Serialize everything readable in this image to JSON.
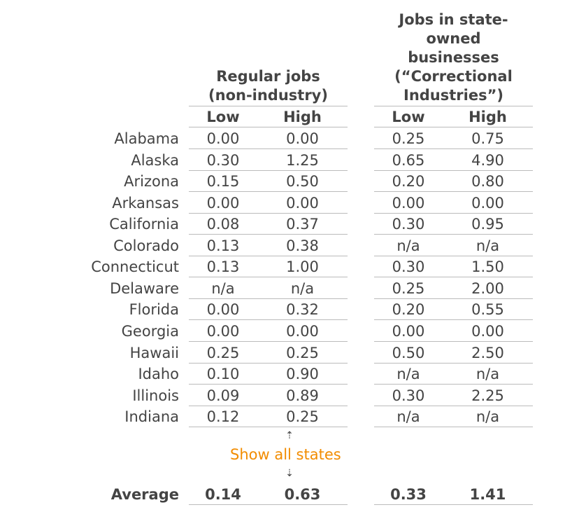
{
  "headers": {
    "regular": [
      "Regular jobs",
      "(non-industry)"
    ],
    "ci": [
      "Jobs in state-",
      "owned",
      "businesses",
      "(“Correctional",
      "Industries”)"
    ],
    "low": "Low",
    "high": "High"
  },
  "rows": [
    {
      "state": "Alabama",
      "reg_low": "0.00",
      "reg_high": "0.00",
      "ci_low": "0.25",
      "ci_high": "0.75"
    },
    {
      "state": "Alaska",
      "reg_low": "0.30",
      "reg_high": "1.25",
      "ci_low": "0.65",
      "ci_high": "4.90"
    },
    {
      "state": "Arizona",
      "reg_low": "0.15",
      "reg_high": "0.50",
      "ci_low": "0.20",
      "ci_high": "0.80"
    },
    {
      "state": "Arkansas",
      "reg_low": "0.00",
      "reg_high": "0.00",
      "ci_low": "0.00",
      "ci_high": "0.00"
    },
    {
      "state": "California",
      "reg_low": "0.08",
      "reg_high": "0.37",
      "ci_low": "0.30",
      "ci_high": "0.95"
    },
    {
      "state": "Colorado",
      "reg_low": "0.13",
      "reg_high": "0.38",
      "ci_low": "n/a",
      "ci_high": "n/a"
    },
    {
      "state": "Connecticut",
      "reg_low": "0.13",
      "reg_high": "1.00",
      "ci_low": "0.30",
      "ci_high": "1.50"
    },
    {
      "state": "Delaware",
      "reg_low": "n/a",
      "reg_high": "n/a",
      "ci_low": "0.25",
      "ci_high": "2.00"
    },
    {
      "state": "Florida",
      "reg_low": "0.00",
      "reg_high": "0.32",
      "ci_low": "0.20",
      "ci_high": "0.55"
    },
    {
      "state": "Georgia",
      "reg_low": "0.00",
      "reg_high": "0.00",
      "ci_low": "0.00",
      "ci_high": "0.00"
    },
    {
      "state": "Hawaii",
      "reg_low": "0.25",
      "reg_high": "0.25",
      "ci_low": "0.50",
      "ci_high": "2.50"
    },
    {
      "state": "Idaho",
      "reg_low": "0.10",
      "reg_high": "0.90",
      "ci_low": "n/a",
      "ci_high": "n/a"
    },
    {
      "state": "Illinois",
      "reg_low": "0.09",
      "reg_high": "0.89",
      "ci_low": "0.30",
      "ci_high": "2.25"
    },
    {
      "state": "Indiana",
      "reg_low": "0.12",
      "reg_high": "0.25",
      "ci_low": "n/a",
      "ci_high": "n/a"
    }
  ],
  "show_all": {
    "label": "Show all states",
    "up_arrow": "⇡",
    "down_arrow": "⇣",
    "link_color": "#f28c00"
  },
  "average": {
    "label": "Average",
    "reg_low": "0.14",
    "reg_high": "0.63",
    "ci_low": "0.33",
    "ci_high": "1.41"
  }
}
